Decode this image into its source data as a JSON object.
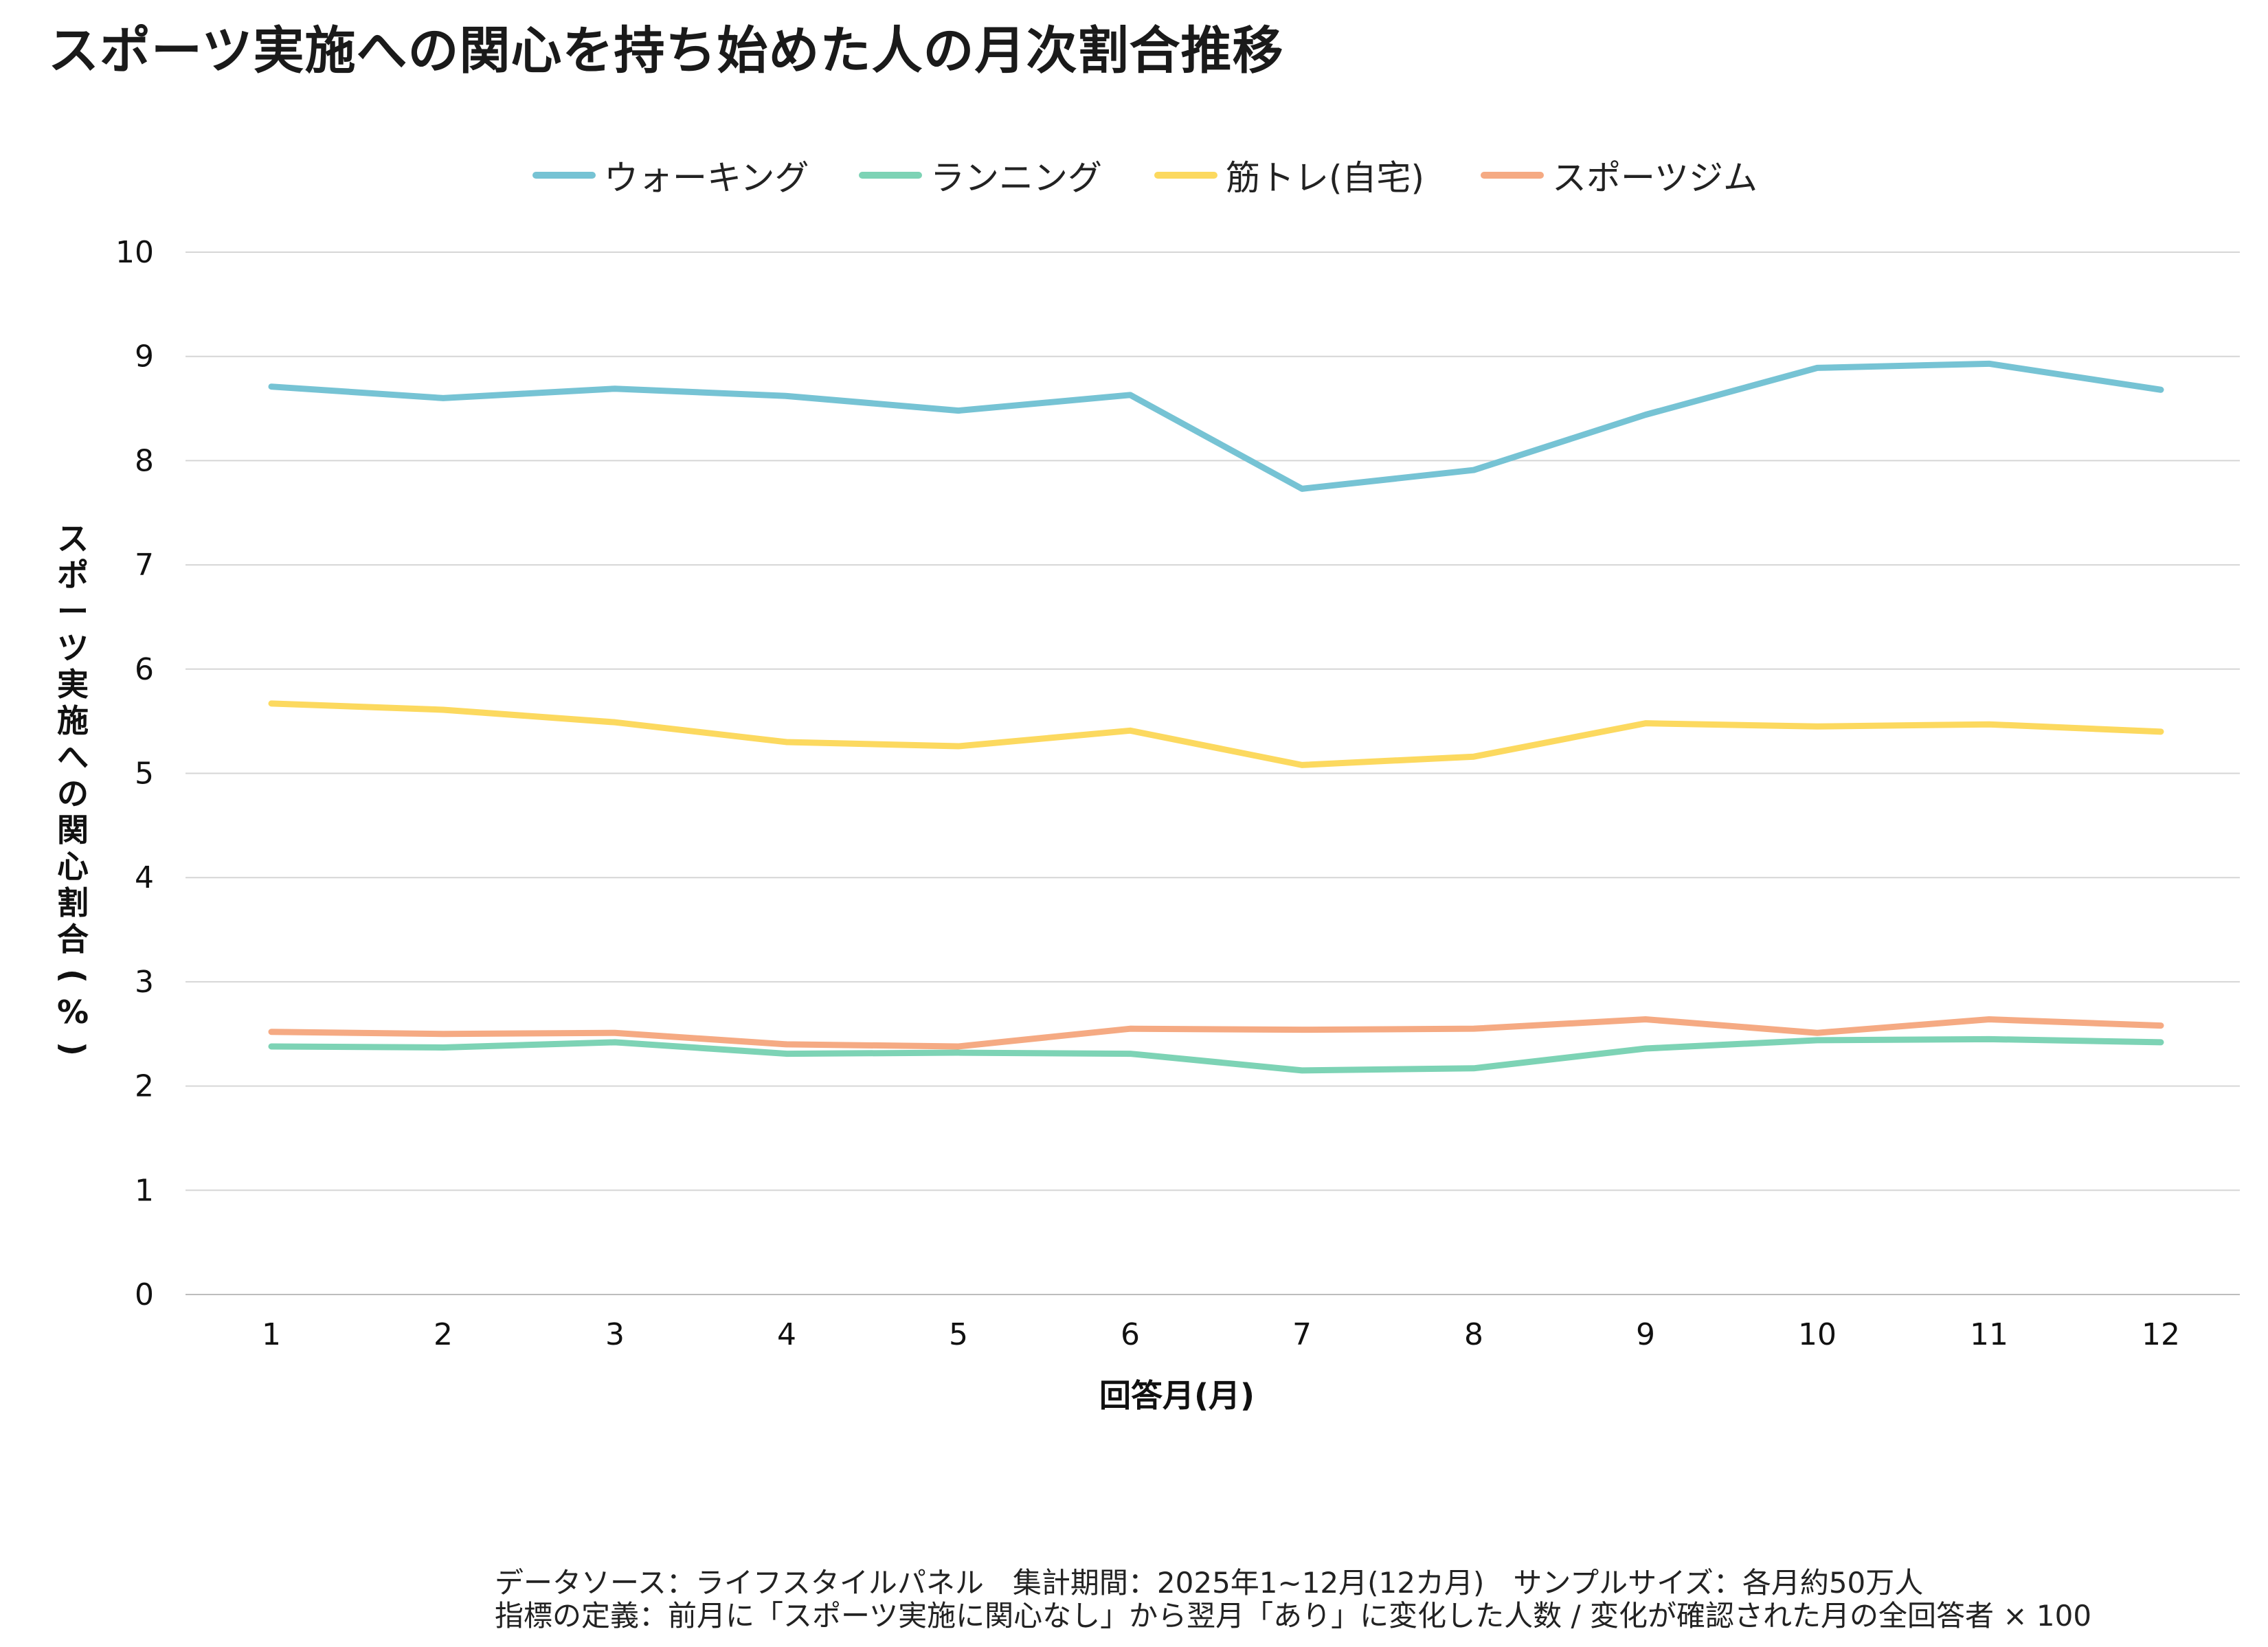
{
  "title": "スポーツ実施への関心を持ち始めた人の月次割合推移",
  "chart_data": {
    "type": "line",
    "title": "スポーツ実施への関心を持ち始めた人の月次割合推移",
    "xlabel": "回答月(月)",
    "ylabel": "スポーツ実施への関心割合(%)",
    "x": [
      1,
      2,
      3,
      4,
      5,
      6,
      7,
      8,
      9,
      10,
      11,
      12
    ],
    "ylim": [
      0,
      10
    ],
    "yticks": [
      0,
      1,
      2,
      3,
      4,
      5,
      6,
      7,
      8,
      9,
      10
    ],
    "grid": "horizontal",
    "legend_position": "top",
    "series": [
      {
        "name": "ウォーキング",
        "color": "#76c3d4",
        "values": [
          8.71,
          8.6,
          8.69,
          8.62,
          8.48,
          8.63,
          7.73,
          7.91,
          8.44,
          8.89,
          8.93,
          8.68
        ]
      },
      {
        "name": "ランニング",
        "color": "#7dd3b5",
        "values": [
          2.38,
          2.37,
          2.42,
          2.31,
          2.32,
          2.31,
          2.15,
          2.17,
          2.36,
          2.44,
          2.45,
          2.42
        ]
      },
      {
        "name": "筋トレ(自宅)",
        "color": "#fcd95f",
        "values": [
          5.67,
          5.61,
          5.49,
          5.3,
          5.26,
          5.41,
          5.08,
          5.16,
          5.48,
          5.45,
          5.47,
          5.4
        ]
      },
      {
        "name": "スポーツジム",
        "color": "#f5aa83",
        "values": [
          2.52,
          2.5,
          2.51,
          2.4,
          2.38,
          2.55,
          2.54,
          2.55,
          2.64,
          2.51,
          2.64,
          2.58
        ]
      }
    ]
  },
  "notes": [
    "データソース：ライフスタイルパネル　集計期間：2025年1~12月(12カ月)　サンプルサイズ：各月約50万人",
    "指標の定義：前月に「スポーツ実施に関心なし」から翌月「あり」に変化した人数 / 変化が確認された月の全回答者 × 100"
  ]
}
